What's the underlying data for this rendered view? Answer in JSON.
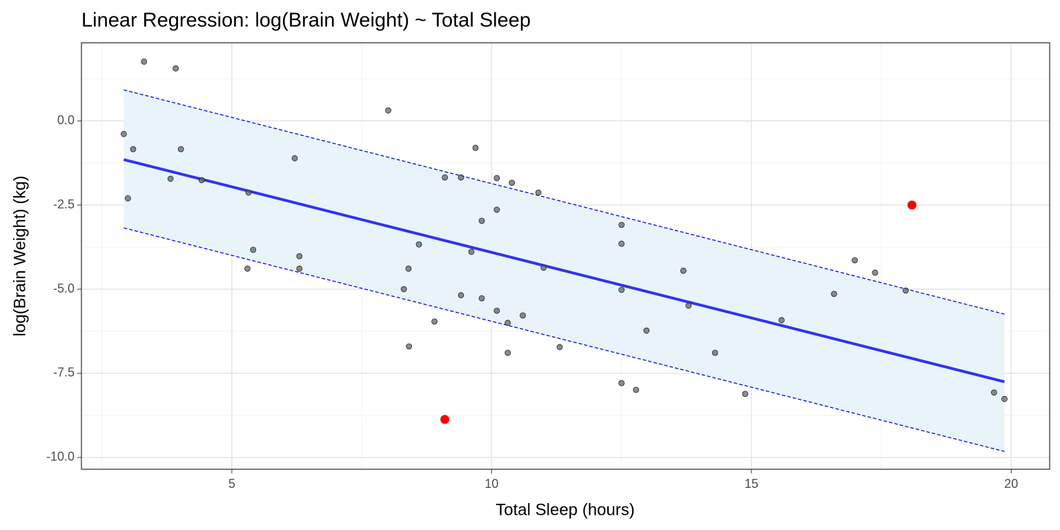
{
  "chart_data": {
    "type": "scatter",
    "title": "Linear Regression: log(Brain Weight) ~ Total Sleep",
    "xlabel": "Total Sleep (hours)",
    "ylabel": "log(Brain Weight) (kg)",
    "xlim": [
      2.105,
      20.74
    ],
    "ylim": [
      -10.35,
      2.32
    ],
    "xticks": [
      5,
      10,
      15,
      20
    ],
    "yticks": [
      {
        "value": 0,
        "label": "0.0"
      },
      {
        "value": -2.5,
        "label": "-2.5"
      },
      {
        "value": -5,
        "label": "-5.0"
      },
      {
        "value": -7.5,
        "label": "-7.5"
      },
      {
        "value": -10,
        "label": "-10.0"
      }
    ],
    "minor_xticks": [
      2.5,
      7.5,
      12.5,
      17.5
    ],
    "minor_yticks": [
      1.25,
      -1.25,
      -3.75,
      -6.25,
      -8.75
    ],
    "grid": true,
    "band": {
      "color": "#e6f3fa",
      "line_color": "#0000ee",
      "x": [
        2.92,
        19.87
      ],
      "upper": [
        0.92,
        -5.74
      ],
      "lower": [
        -3.18,
        -9.82
      ]
    },
    "fit": {
      "color": "#3333ee",
      "x": [
        2.92,
        19.87
      ],
      "values": [
        -1.15,
        -7.75
      ]
    },
    "series": [
      {
        "color": "#666666",
        "x": [
          2.92,
          3.1,
          3.0,
          3.31,
          3.92,
          3.82,
          4.02,
          4.42,
          5.32,
          5.3,
          5.41,
          6.21,
          6.3,
          6.3,
          8.01,
          8.31,
          8.4,
          8.41,
          8.6,
          8.9,
          9.1,
          9.41,
          9.41,
          9.61,
          9.69,
          9.81,
          9.81,
          10.1,
          10.1,
          10.1,
          10.31,
          10.31,
          10.39,
          10.6,
          10.9,
          11.0,
          11.31,
          12.5,
          12.5,
          12.5,
          12.5,
          12.78,
          12.98,
          13.69,
          13.79,
          14.3,
          14.88,
          15.58,
          16.59,
          16.99,
          17.38,
          17.97,
          19.67,
          19.87
        ],
        "values": [
          -0.39,
          -0.84,
          -2.3,
          1.76,
          1.56,
          -1.72,
          -0.84,
          -1.76,
          -2.13,
          -4.39,
          -3.83,
          -1.11,
          -4.02,
          -4.39,
          0.31,
          -5.0,
          -4.39,
          -6.7,
          -3.67,
          -5.96,
          -1.68,
          -1.68,
          -5.18,
          -3.89,
          -0.8,
          -2.97,
          -5.27,
          -1.7,
          -2.64,
          -5.64,
          -6.0,
          -6.89,
          -1.84,
          -5.78,
          -2.13,
          -4.36,
          -6.72,
          -3.09,
          -3.65,
          -5.02,
          -7.79,
          -7.99,
          -6.23,
          -4.45,
          -5.49,
          -6.89,
          -8.11,
          -5.92,
          -5.14,
          -4.14,
          -4.51,
          -5.04,
          -8.07,
          -8.26
        ]
      },
      {
        "color": "#ff0000",
        "x": [
          9.1,
          18.09
        ],
        "values": [
          -8.87,
          -2.5
        ]
      }
    ]
  }
}
